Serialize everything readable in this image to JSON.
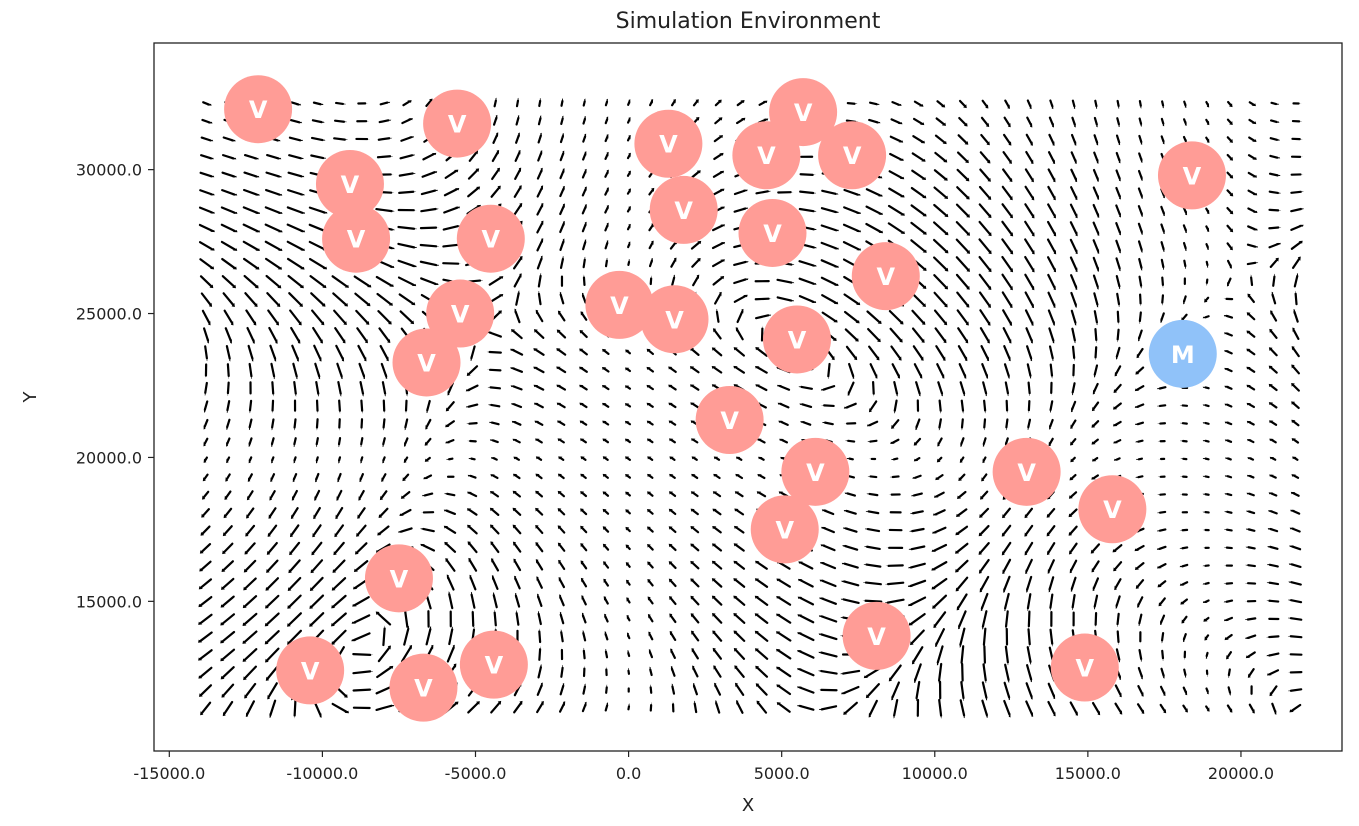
{
  "chart_data": {
    "type": "scatter",
    "title": "Simulation Environment",
    "xlabel": "X",
    "ylabel": "Y",
    "xlim": [
      -15500,
      23300
    ],
    "ylim": [
      9800,
      34400
    ],
    "grid": false,
    "background_field": "vector-field-quiver",
    "field_extent": {
      "x": [
        -13800,
        21800
      ],
      "y": [
        11300,
        32300
      ]
    },
    "x_ticks": [
      {
        "value": -15000,
        "label": "-15000.0"
      },
      {
        "value": -10000,
        "label": "-10000.0"
      },
      {
        "value": -5000,
        "label": "-5000.0"
      },
      {
        "value": 0,
        "label": "0.0"
      },
      {
        "value": 5000,
        "label": "5000.0"
      },
      {
        "value": 10000,
        "label": "10000.0"
      },
      {
        "value": 15000,
        "label": "15000.0"
      },
      {
        "value": 20000,
        "label": "20000.0"
      }
    ],
    "y_ticks": [
      {
        "value": 15000,
        "label": "15000.0"
      },
      {
        "value": 20000,
        "label": "20000.0"
      },
      {
        "value": 25000,
        "label": "25000.0"
      },
      {
        "value": 30000,
        "label": "30000.0"
      }
    ],
    "series": [
      {
        "marker_label": "V",
        "color": "#ff9c96",
        "points": [
          {
            "x": -12100,
            "y": 32100
          },
          {
            "x": -5600,
            "y": 31600
          },
          {
            "x": -9100,
            "y": 29500
          },
          {
            "x": -8900,
            "y": 27600
          },
          {
            "x": -4500,
            "y": 27600
          },
          {
            "x": -5500,
            "y": 25000
          },
          {
            "x": -6600,
            "y": 23300
          },
          {
            "x": -300,
            "y": 25300
          },
          {
            "x": 1500,
            "y": 24800
          },
          {
            "x": 1300,
            "y": 30900
          },
          {
            "x": 1800,
            "y": 28600
          },
          {
            "x": 4500,
            "y": 30500
          },
          {
            "x": 5700,
            "y": 32000
          },
          {
            "x": 7300,
            "y": 30500
          },
          {
            "x": 4700,
            "y": 27800
          },
          {
            "x": 8400,
            "y": 26300
          },
          {
            "x": 5500,
            "y": 24100
          },
          {
            "x": 3300,
            "y": 21300
          },
          {
            "x": 6100,
            "y": 19500
          },
          {
            "x": 5100,
            "y": 17500
          },
          {
            "x": 13000,
            "y": 19500
          },
          {
            "x": 15800,
            "y": 18200
          },
          {
            "x": -7500,
            "y": 15800
          },
          {
            "x": -10400,
            "y": 12600
          },
          {
            "x": -6700,
            "y": 12000
          },
          {
            "x": -4400,
            "y": 12800
          },
          {
            "x": 8100,
            "y": 13800
          },
          {
            "x": 14900,
            "y": 12700
          },
          {
            "x": 18400,
            "y": 29800
          }
        ]
      },
      {
        "marker_label": "M",
        "color": "#90c2f9",
        "points": [
          {
            "x": 18100,
            "y": 23600
          }
        ]
      }
    ]
  }
}
